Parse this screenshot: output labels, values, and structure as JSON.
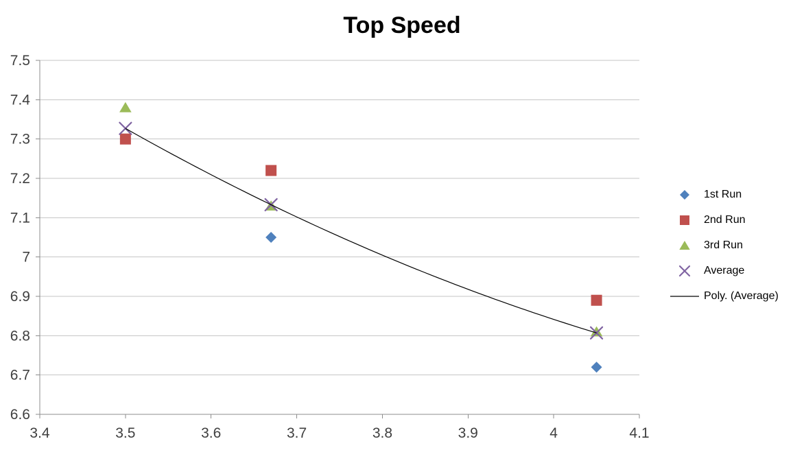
{
  "title": "Top Speed",
  "chart_data": {
    "type": "scatter",
    "title": "Top Speed",
    "x": [
      3.5,
      3.67,
      4.05
    ],
    "series": [
      {
        "name": "1st Run",
        "marker": "diamond",
        "color": "#4F81BD",
        "values": [
          7.3,
          7.05,
          6.72
        ]
      },
      {
        "name": "2nd Run",
        "marker": "square",
        "color": "#C0504D",
        "values": [
          7.3,
          7.22,
          6.89
        ]
      },
      {
        "name": "3rd Run",
        "marker": "triangle",
        "color": "#9BBB59",
        "values": [
          7.38,
          7.13,
          6.81
        ]
      },
      {
        "name": "Average",
        "marker": "x",
        "color": "#8064A2",
        "values": [
          7.327,
          7.133,
          6.807
        ]
      }
    ],
    "trendline": {
      "name": "Poly. (Average)",
      "fit": "polynomial",
      "order": 2,
      "source_series": "Average",
      "color": "#000000",
      "x_range": [
        3.5,
        4.05
      ]
    },
    "xlim": [
      3.4,
      4.1
    ],
    "ylim": [
      6.6,
      7.5
    ],
    "x_ticks": {
      "values": [
        3.4,
        3.5,
        3.6,
        3.7,
        3.8,
        3.9,
        4.0,
        4.1
      ],
      "labels": [
        "3.4",
        "3.5",
        "3.6",
        "3.7",
        "3.8",
        "3.9",
        "4",
        "4.1"
      ]
    },
    "y_ticks": {
      "values": [
        6.6,
        6.7,
        6.8,
        6.9,
        7.0,
        7.1,
        7.2,
        7.3,
        7.4,
        7.5
      ],
      "labels": [
        "6.6",
        "6.7",
        "6.8",
        "6.9",
        "7",
        "7.1",
        "7.2",
        "7.3",
        "7.4",
        "7.5"
      ]
    },
    "grid": "horizontal",
    "legend_position": "right",
    "colors": {
      "gridline": "#C6C6C6",
      "axis": "#8C8C8C",
      "tick_label": "#3F3F3F",
      "title": "#000000"
    }
  }
}
